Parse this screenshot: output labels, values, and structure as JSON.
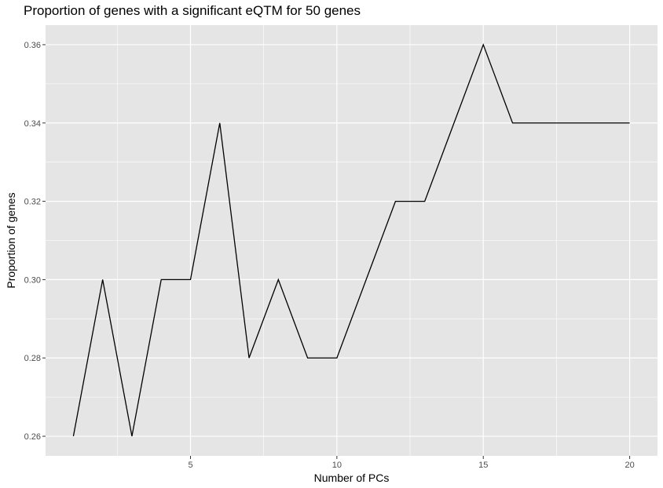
{
  "chart_data": {
    "type": "line",
    "title": "Proportion of genes with a significant eQTM for 50 genes",
    "xlabel": "Number of PCs",
    "ylabel": "Proportion of genes",
    "xlim": [
      0.05,
      20.95
    ],
    "ylim": [
      0.255,
      0.365
    ],
    "x_ticks": [
      5,
      10,
      15,
      20
    ],
    "x_tick_labels": [
      "5",
      "10",
      "15",
      "20"
    ],
    "y_ticks": [
      0.26,
      0.28,
      0.3,
      0.32,
      0.34,
      0.36
    ],
    "y_tick_labels": [
      "0.26",
      "0.28",
      "0.30",
      "0.32",
      "0.34",
      "0.36"
    ],
    "grid": true,
    "series": [
      {
        "x": [
          1,
          2,
          3,
          4,
          5,
          6,
          7,
          8,
          9,
          10,
          11,
          12,
          13,
          14,
          15,
          16,
          17,
          18,
          19,
          20
        ],
        "values": [
          0.26,
          0.3,
          0.26,
          0.3,
          0.3,
          0.34,
          0.28,
          0.3,
          0.28,
          0.28,
          0.3,
          0.32,
          0.32,
          0.34,
          0.36,
          0.34,
          0.34,
          0.34,
          0.34,
          0.34
        ],
        "color": "#000000"
      }
    ],
    "colors": {
      "panel_background": "#e5e5e5",
      "grid": "#ffffff",
      "line": "#000000"
    }
  }
}
